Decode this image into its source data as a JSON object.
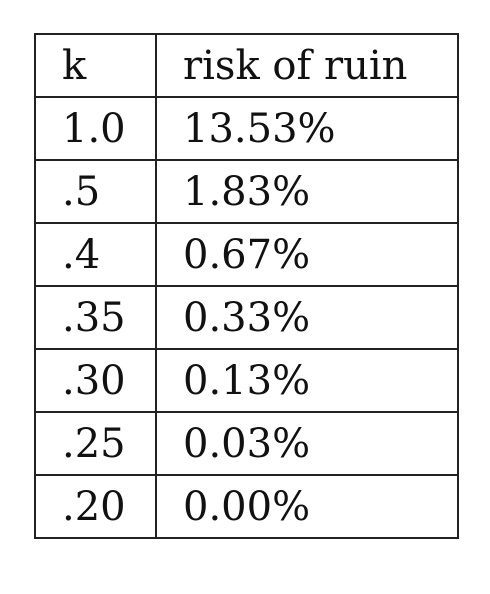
{
  "table": {
    "headers": [
      "k",
      "risk of ruin"
    ],
    "rows": [
      [
        "1.0",
        "13.53%"
      ],
      [
        ".5",
        "1.83%"
      ],
      [
        ".4",
        "0.67%"
      ],
      [
        ".35",
        "0.33%"
      ],
      [
        ".30",
        "0.13%"
      ],
      [
        ".25",
        "0.03%"
      ],
      [
        ".20",
        "0.00%"
      ]
    ]
  }
}
